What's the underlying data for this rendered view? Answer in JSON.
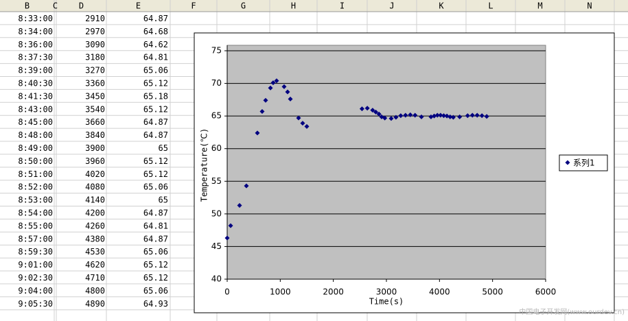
{
  "sheet": {
    "columns": [
      "B",
      "C",
      "D",
      "E",
      "F",
      "G",
      "H",
      "I",
      "J",
      "K",
      "L",
      "M",
      "N"
    ],
    "rows": [
      [
        "8:33:00",
        2910,
        64.87
      ],
      [
        "8:34:00",
        2970,
        64.68
      ],
      [
        "8:36:00",
        3090,
        64.62
      ],
      [
        "8:37:30",
        3180,
        64.81
      ],
      [
        "8:39:00",
        3270,
        65.06
      ],
      [
        "8:40:30",
        3360,
        65.12
      ],
      [
        "8:41:30",
        3450,
        65.18
      ],
      [
        "8:43:00",
        3540,
        65.12
      ],
      [
        "8:45:00",
        3660,
        64.87
      ],
      [
        "8:48:00",
        3840,
        64.87
      ],
      [
        "8:49:00",
        3900,
        65
      ],
      [
        "8:50:00",
        3960,
        65.12
      ],
      [
        "8:51:00",
        4020,
        65.12
      ],
      [
        "8:52:00",
        4080,
        65.06
      ],
      [
        "8:53:00",
        4140,
        65
      ],
      [
        "8:54:00",
        4200,
        64.87
      ],
      [
        "8:55:00",
        4260,
        64.81
      ],
      [
        "8:57:00",
        4380,
        64.87
      ],
      [
        "8:59:30",
        4530,
        65.06
      ],
      [
        "9:01:00",
        4620,
        65.12
      ],
      [
        "9:02:30",
        4710,
        65.12
      ],
      [
        "9:04:00",
        4800,
        65.06
      ],
      [
        "9:05:30",
        4890,
        64.93
      ]
    ]
  },
  "chart_data": {
    "type": "scatter",
    "xlabel": "Time(s)",
    "ylabel": "Temperature(℃)",
    "xlim": [
      0,
      6000
    ],
    "xticks": [
      0,
      1000,
      2000,
      3000,
      4000,
      5000,
      6000
    ],
    "ylim": [
      40,
      75
    ],
    "yticks": [
      40,
      45,
      50,
      55,
      60,
      65,
      70,
      75
    ],
    "grid": true,
    "legend": "right",
    "series": [
      {
        "name": "系列1",
        "color": "#000080",
        "x": [
          0,
          65,
          233,
          362,
          569,
          659,
          724,
          815,
          866,
          931,
          1073,
          1138,
          1190,
          1345,
          1422,
          1500,
          2540,
          2640,
          2740,
          2800,
          2860,
          2910,
          2970,
          3090,
          3180,
          3270,
          3360,
          3450,
          3540,
          3660,
          3840,
          3900,
          3960,
          4020,
          4080,
          4140,
          4200,
          4260,
          4380,
          4530,
          4620,
          4710,
          4800,
          4890
        ],
        "values": [
          46.3,
          48.2,
          51.3,
          54.3,
          62.4,
          65.7,
          67.4,
          69.3,
          70.1,
          70.4,
          69.5,
          68.7,
          67.6,
          64.7,
          63.9,
          63.4,
          66.1,
          66.2,
          65.9,
          65.6,
          65.3,
          64.87,
          64.68,
          64.62,
          64.81,
          65.06,
          65.12,
          65.18,
          65.12,
          64.87,
          64.87,
          65,
          65.12,
          65.12,
          65.06,
          65,
          64.87,
          64.81,
          64.87,
          65.06,
          65.12,
          65.12,
          65.06,
          64.93
        ]
      }
    ]
  },
  "watermark": "中国电子开发网(www.ourdev.cn)"
}
